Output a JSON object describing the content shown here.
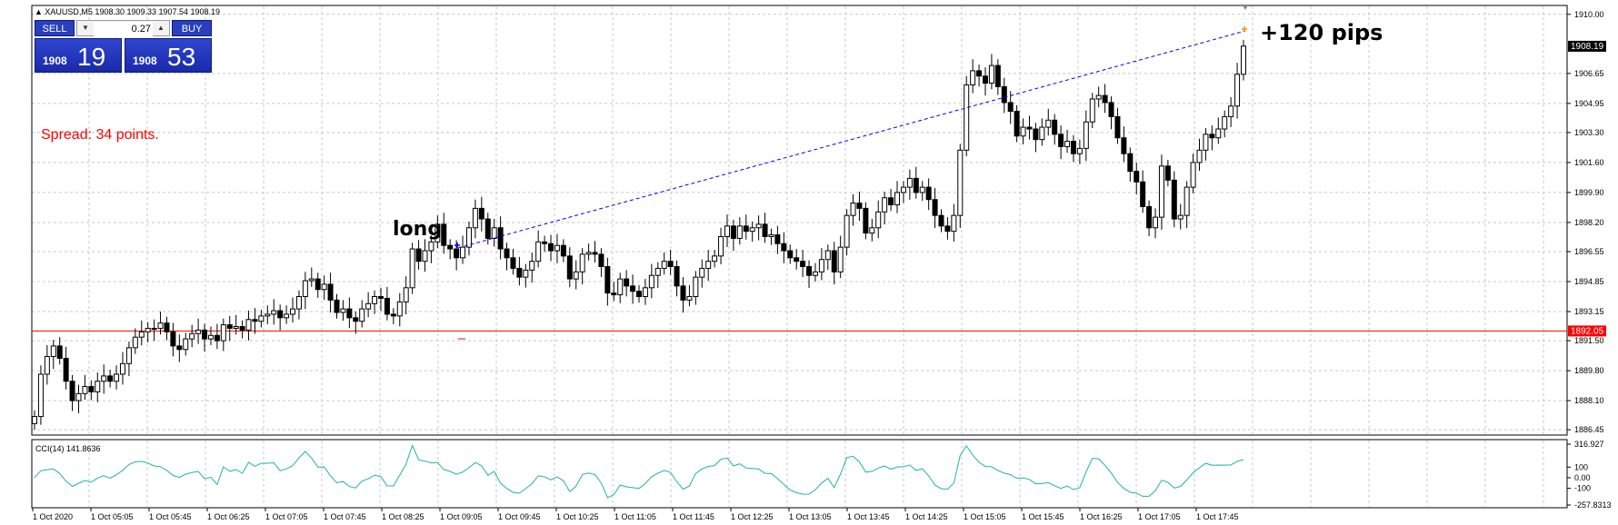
{
  "header": {
    "symbol_line": "XAUUSD,M5  1908.30 1909.33 1907.54 1908.19"
  },
  "trade_panel": {
    "sell_label": "SELL",
    "buy_label": "BUY",
    "lot": "0.27",
    "sell_base": "1908",
    "sell_big": "19",
    "buy_base": "1908",
    "buy_big": "53",
    "down_arrow": "▼",
    "up_arrow": "▲"
  },
  "annotations": {
    "spread": "Spread: 34 points.",
    "long": "long",
    "pips": "+120 pips"
  },
  "price_axis": {
    "labels": [
      "1910.00",
      "1906.65",
      "1904.95",
      "1903.30",
      "1901.60",
      "1899.90",
      "1898.20",
      "1896.55",
      "1894.85",
      "1893.15",
      "1891.50",
      "1889.80",
      "1888.10",
      "1886.45"
    ],
    "current_price": "1908.19",
    "line_price": "1892.05"
  },
  "indicator": {
    "title": "CCI(14) 141.8636",
    "axis_labels": [
      "316.927",
      "100",
      "0.00",
      "-100",
      "-257.8313"
    ]
  },
  "time_axis": {
    "labels": [
      "1 Oct 2020",
      "1 Oct 05:05",
      "1 Oct 05:45",
      "1 Oct 06:25",
      "1 Oct 07:05",
      "1 Oct 07:45",
      "1 Oct 08:25",
      "1 Oct 09:05",
      "1 Oct 09:45",
      "1 Oct 10:25",
      "1 Oct 11:05",
      "1 Oct 11:45",
      "1 Oct 12:25",
      "1 Oct 13:05",
      "1 Oct 13:45",
      "1 Oct 14:25",
      "1 Oct 15:05",
      "1 Oct 15:45",
      "1 Oct 16:25",
      "1 Oct 17:05",
      "1 Oct 17:45"
    ]
  },
  "colors": {
    "bull": "#ffffff",
    "bear": "#000000",
    "grid": "#c0c0c0",
    "hline": "#ff0000",
    "trend": "#0000ff",
    "cci": "#20b2aa",
    "current_bg": "#000000",
    "hline_bg": "#ff0000"
  },
  "chart_data": {
    "type": "candlestick",
    "closes": [
      1887.2,
      1889.6,
      1890.6,
      1891.2,
      1890.5,
      1889.2,
      1888.1,
      1888.5,
      1888.9,
      1888.6,
      1889.2,
      1889.5,
      1889.2,
      1889.6,
      1890.2,
      1891.1,
      1891.7,
      1892.0,
      1892.2,
      1892.2,
      1892.5,
      1892.0,
      1891.2,
      1891.0,
      1891.6,
      1891.9,
      1892.1,
      1891.6,
      1891.8,
      1891.5,
      1892.4,
      1892.2,
      1892.3,
      1892.1,
      1892.7,
      1892.6,
      1892.9,
      1893.0,
      1893.2,
      1892.8,
      1893.0,
      1893.3,
      1894.0,
      1894.9,
      1895.0,
      1894.4,
      1894.7,
      1893.8,
      1893.1,
      1893.3,
      1892.8,
      1892.6,
      1893.3,
      1893.6,
      1894.0,
      1893.9,
      1893.0,
      1892.9,
      1893.7,
      1894.5,
      1896.7,
      1896.0,
      1896.6,
      1897.1,
      1898.1,
      1896.9,
      1896.7,
      1896.2,
      1896.8,
      1897.9,
      1899.0,
      1898.4,
      1897.3,
      1897.9,
      1896.7,
      1896.2,
      1895.6,
      1895.1,
      1895.5,
      1896.0,
      1897.1,
      1897.0,
      1896.6,
      1896.9,
      1896.3,
      1895.0,
      1895.4,
      1896.4,
      1896.5,
      1896.4,
      1895.7,
      1894.2,
      1894.1,
      1895.0,
      1894.6,
      1894.3,
      1894.0,
      1894.5,
      1895.2,
      1895.6,
      1896.0,
      1895.7,
      1894.6,
      1893.8,
      1894.0,
      1895.1,
      1895.6,
      1896.0,
      1896.3,
      1897.4,
      1898.0,
      1897.3,
      1898.0,
      1897.7,
      1897.9,
      1898.1,
      1897.4,
      1897.5,
      1897.0,
      1896.6,
      1896.2,
      1896.0,
      1895.7,
      1895.2,
      1895.4,
      1896.1,
      1896.6,
      1895.4,
      1896.8,
      1898.6,
      1899.3,
      1899.0,
      1897.6,
      1897.9,
      1898.8,
      1899.6,
      1899.2,
      1899.9,
      1900.2,
      1900.7,
      1899.9,
      1900.2,
      1899.5,
      1898.6,
      1898.0,
      1897.7,
      1898.6,
      1902.3,
      1906.0,
      1906.8,
      1906.5,
      1906.1,
      1907.1,
      1905.9,
      1905.0,
      1904.5,
      1903.1,
      1903.6,
      1903.5,
      1902.9,
      1903.6,
      1904.0,
      1903.2,
      1902.5,
      1902.8,
      1902.1,
      1902.4,
      1903.9,
      1905.2,
      1905.4,
      1905.0,
      1904.2,
      1903.0,
      1902.1,
      1901.1,
      1900.5,
      1899.1,
      1897.9,
      1898.5,
      1901.4,
      1900.6,
      1898.4,
      1898.6,
      1900.2,
      1901.6,
      1902.3,
      1903.2,
      1903.0,
      1903.5,
      1904.2,
      1904.8,
      1906.6,
      1908.2
    ]
  }
}
